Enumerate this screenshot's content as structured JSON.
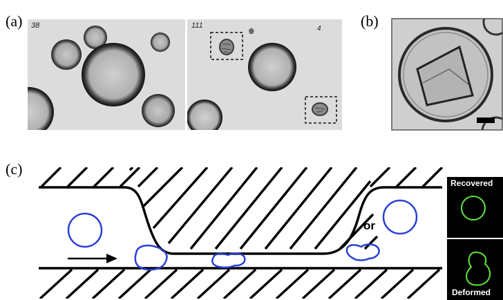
{
  "figure": {
    "panel_a_label": "(a)",
    "panel_b_label": "(b)",
    "panel_c_label": "(c)",
    "frame_left_number": "38",
    "frame_right_number": "111",
    "frame_right_small_mark": "4",
    "or_text": "or",
    "recovered_label": "Recovered",
    "deformed_label": "Deformed",
    "colors": {
      "cell_outline": "#2b3fd6",
      "fluorescence": "#5fe83a",
      "micrograph_bg": "#d9d9d9",
      "inset_bg": "#000000"
    }
  }
}
